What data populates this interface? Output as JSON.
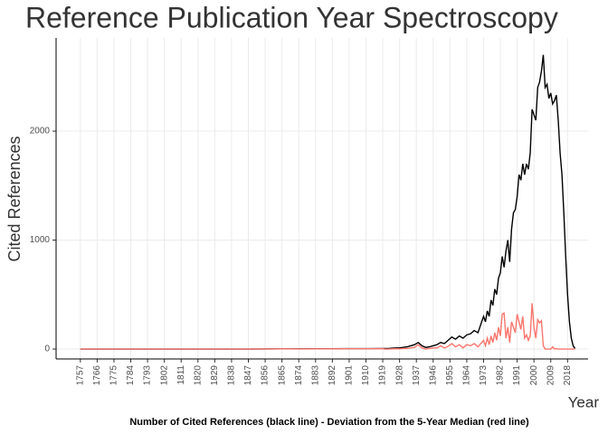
{
  "chart_data": {
    "type": "line",
    "title": "Reference Publication Year Spectroscopy",
    "y_label": "Cited References",
    "x_label": "Year",
    "caption": "Number of Cited References (black line) - Deviation from the 5-Year Median (red line)",
    "x": [
      1757,
      1766,
      1775,
      1784,
      1793,
      1802,
      1811,
      1820,
      1829,
      1838,
      1847,
      1856,
      1865,
      1874,
      1883,
      1892,
      1901,
      1910,
      1919,
      1920,
      1922,
      1924,
      1926,
      1928,
      1930,
      1932,
      1934,
      1936,
      1938,
      1940,
      1942,
      1944,
      1946,
      1948,
      1950,
      1952,
      1954,
      1956,
      1958,
      1960,
      1962,
      1964,
      1966,
      1968,
      1970,
      1971,
      1972,
      1973,
      1974,
      1975,
      1976,
      1977,
      1978,
      1979,
      1980,
      1981,
      1982,
      1983,
      1984,
      1985,
      1986,
      1987,
      1988,
      1989,
      1990,
      1991,
      1992,
      1993,
      1994,
      1995,
      1996,
      1997,
      1998,
      1999,
      2000,
      2001,
      2002,
      2003,
      2004,
      2005,
      2006,
      2007,
      2008,
      2009,
      2010,
      2011,
      2012,
      2013,
      2014,
      2015,
      2016,
      2017,
      2018,
      2019,
      2020,
      2021,
      2022
    ],
    "series": [
      {
        "color": "#000000",
        "values": [
          0,
          0,
          0,
          0,
          0,
          0,
          0,
          0,
          0,
          0,
          0,
          1,
          2,
          2,
          3,
          3,
          4,
          4,
          5,
          5,
          5,
          8,
          10,
          10,
          15,
          20,
          30,
          40,
          60,
          30,
          15,
          20,
          30,
          40,
          60,
          50,
          80,
          110,
          90,
          120,
          100,
          130,
          140,
          170,
          150,
          200,
          250,
          300,
          250,
          350,
          300,
          450,
          400,
          550,
          500,
          650,
          700,
          850,
          750,
          900,
          1000,
          800,
          1100,
          1250,
          1280,
          1400,
          1600,
          1550,
          1700,
          1600,
          1700,
          1650,
          1800,
          2200,
          2150,
          2100,
          2400,
          2450,
          2550,
          2700,
          2400,
          2430,
          2300,
          2350,
          2250,
          2280,
          2330,
          2100,
          1800,
          1600,
          1250,
          850,
          500,
          250,
          100,
          30,
          5
        ]
      },
      {
        "color": "#f8766d",
        "values": [
          0,
          0,
          0,
          0,
          0,
          0,
          0,
          0,
          0,
          0,
          0,
          1,
          2,
          1,
          2,
          2,
          3,
          3,
          4,
          0,
          0,
          2,
          3,
          2,
          5,
          5,
          10,
          15,
          40,
          10,
          0,
          5,
          10,
          10,
          30,
          10,
          25,
          50,
          20,
          40,
          10,
          40,
          30,
          50,
          20,
          40,
          60,
          80,
          30,
          100,
          40,
          120,
          60,
          150,
          80,
          200,
          120,
          320,
          330,
          100,
          200,
          60,
          250,
          200,
          150,
          320,
          250,
          180,
          300,
          100,
          130,
          80,
          120,
          420,
          200,
          100,
          270,
          240,
          260,
          30,
          0,
          0,
          0,
          0,
          20,
          0,
          5,
          0,
          0,
          0,
          0,
          0,
          0,
          0,
          0,
          0,
          0
        ]
      }
    ],
    "xlim": [
      1744,
      2029
    ],
    "ylim": [
      -91,
      2855
    ],
    "xticks": [
      1757,
      1766,
      1775,
      1784,
      1793,
      1802,
      1811,
      1820,
      1829,
      1838,
      1847,
      1856,
      1865,
      1874,
      1883,
      1892,
      1901,
      1910,
      1919,
      1928,
      1937,
      1946,
      1955,
      1964,
      1973,
      1982,
      1991,
      2000,
      2009,
      2018
    ],
    "yticks": [
      0,
      1000,
      2000
    ],
    "grid": true
  }
}
